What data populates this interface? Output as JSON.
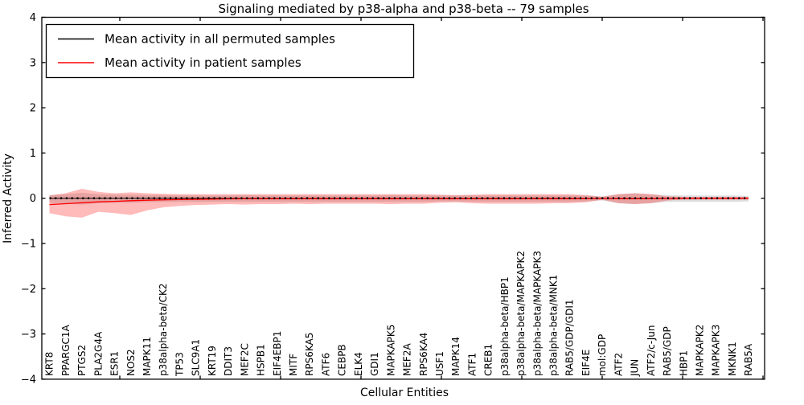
{
  "chart_data": {
    "type": "line",
    "title": "Signaling mediated by p38-alpha and p38-beta -- 79 samples",
    "xlabel": "Cellular Entities",
    "ylabel": "Inferred Activity",
    "ylim": [
      -4,
      4
    ],
    "yticks": [
      4,
      3,
      2,
      1,
      0,
      -1,
      -2,
      -3,
      -4
    ],
    "yticklabels": [
      "4",
      "3",
      "2",
      "1",
      "0",
      "−1",
      "−2",
      "−3",
      "−4"
    ],
    "grid": false,
    "legend_position": "upper left",
    "legend": [
      {
        "label": "Mean activity in all permuted samples",
        "color": "#000000"
      },
      {
        "label": "Mean activity in patient samples",
        "color": "#ff0000"
      }
    ],
    "categories": [
      "KRT8",
      "PPARGC1A",
      "PTGS2",
      "PLA2G4A",
      "ESR1",
      "NOS2",
      "MAPK11",
      "p38alpha-beta/CK2",
      "TP53",
      "SLC9A1",
      "KRT19",
      "DDIT3",
      "MEF2C",
      "HSPB1",
      "EIF4EBP1",
      "MITF",
      "RPS6KA5",
      "ATF6",
      "CEBPB",
      "ELK4",
      "GDI1",
      "MAPKAPK5",
      "MEF2A",
      "RPS6KA4",
      "USF1",
      "MAPK14",
      "ATF1",
      "CREB1",
      "p38alpha-beta/HBP1",
      "p38alpha-beta/MAPKAPK2",
      "p38alpha-beta/MAPKAPK3",
      "p38alpha-beta/MNK1",
      "RAB5/GDP/GDI1",
      "EIF4E",
      "mol:GDP",
      "ATF2",
      "JUN",
      "ATF2/c-Jun",
      "RAB5/GDP",
      "HBP1",
      "MAPKAPK2",
      "MAPKAPK3",
      "MKNK1",
      "RAB5A"
    ],
    "series": [
      {
        "name": "Mean activity in all permuted samples",
        "color": "#000000",
        "band_color": "#000000",
        "band_opacity": 0.13,
        "values": [
          0,
          0,
          0,
          0,
          0,
          0,
          0,
          0,
          0,
          0,
          0,
          0,
          0,
          0,
          0,
          0,
          0,
          0,
          0,
          0,
          0,
          0,
          0,
          0,
          0,
          0,
          0,
          0,
          0,
          0,
          0,
          0,
          0,
          0,
          0,
          0,
          0,
          0,
          0,
          0,
          0,
          0,
          0,
          0
        ],
        "band_lower": [
          -0.1,
          -0.12,
          -0.14,
          -0.11,
          -0.1,
          -0.1,
          -0.09,
          -0.08,
          -0.08,
          -0.08,
          -0.08,
          -0.08,
          -0.08,
          -0.08,
          -0.08,
          -0.08,
          -0.08,
          -0.08,
          -0.08,
          -0.08,
          -0.08,
          -0.08,
          -0.08,
          -0.08,
          -0.07,
          -0.07,
          -0.08,
          -0.08,
          -0.08,
          -0.08,
          -0.08,
          -0.08,
          -0.08,
          -0.07,
          -0.05,
          -0.11,
          -0.13,
          -0.11,
          -0.08,
          -0.08,
          -0.08,
          -0.08,
          -0.08,
          -0.07
        ],
        "band_upper": [
          0.07,
          0.09,
          0.12,
          0.09,
          0.08,
          0.08,
          0.07,
          0.07,
          0.06,
          0.06,
          0.06,
          0.06,
          0.07,
          0.06,
          0.06,
          0.06,
          0.06,
          0.06,
          0.06,
          0.06,
          0.06,
          0.07,
          0.06,
          0.06,
          0.06,
          0.06,
          0.06,
          0.06,
          0.06,
          0.06,
          0.06,
          0.06,
          0.06,
          0.06,
          0.04,
          0.09,
          0.11,
          0.09,
          0.07,
          0.06,
          0.06,
          0.06,
          0.06,
          0.05
        ]
      },
      {
        "name": "Mean activity in patient samples",
        "color": "#ff0000",
        "band_color": "#ff0000",
        "band_opacity": 0.27,
        "values": [
          -0.14,
          -0.12,
          -0.1,
          -0.08,
          -0.07,
          -0.055,
          -0.045,
          -0.035,
          -0.03,
          -0.025,
          -0.02,
          -0.015,
          -0.012,
          -0.01,
          -0.01,
          -0.01,
          -0.01,
          -0.01,
          -0.01,
          -0.01,
          -0.01,
          -0.01,
          -0.01,
          -0.01,
          -0.01,
          -0.01,
          -0.01,
          -0.01,
          -0.01,
          -0.01,
          -0.01,
          -0.01,
          -0.01,
          -0.008,
          -0.005,
          -0.008,
          -0.01,
          -0.008,
          -0.005,
          -0.003,
          -0.002,
          -0.002,
          -0.002,
          0.0
        ],
        "band_lower": [
          -0.33,
          -0.4,
          -0.43,
          -0.3,
          -0.33,
          -0.37,
          -0.27,
          -0.2,
          -0.17,
          -0.15,
          -0.14,
          -0.13,
          -0.14,
          -0.13,
          -0.13,
          -0.12,
          -0.13,
          -0.12,
          -0.12,
          -0.12,
          -0.12,
          -0.13,
          -0.12,
          -0.12,
          -0.1,
          -0.09,
          -0.11,
          -0.12,
          -0.12,
          -0.12,
          -0.12,
          -0.11,
          -0.11,
          -0.09,
          -0.03,
          -0.11,
          -0.13,
          -0.11,
          -0.05,
          -0.03,
          -0.03,
          -0.03,
          -0.03,
          -0.03
        ],
        "band_upper": [
          0.06,
          0.11,
          0.21,
          0.14,
          0.11,
          0.13,
          0.11,
          0.1,
          0.09,
          0.09,
          0.09,
          0.09,
          0.09,
          0.09,
          0.09,
          0.09,
          0.09,
          0.09,
          0.09,
          0.09,
          0.09,
          0.09,
          0.09,
          0.09,
          0.08,
          0.07,
          0.08,
          0.09,
          0.09,
          0.09,
          0.09,
          0.09,
          0.09,
          0.07,
          0.03,
          0.09,
          0.11,
          0.09,
          0.04,
          0.03,
          0.03,
          0.03,
          0.03,
          0.03
        ]
      }
    ]
  }
}
